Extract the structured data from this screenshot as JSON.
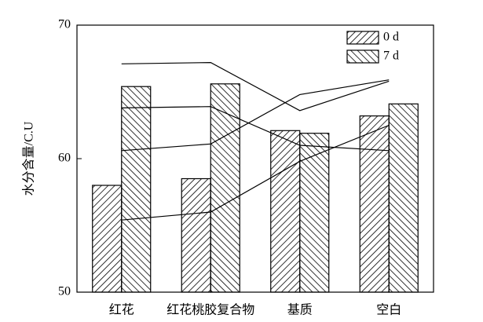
{
  "chart_data": {
    "type": "bar",
    "y_label": "水分含量/C.U",
    "categories": [
      "红花",
      "红花桃胶复合物",
      "基质",
      "空白"
    ],
    "series": [
      {
        "name": "0 d",
        "color": "#000000",
        "hatch": "forward",
        "values": [
          58.0,
          58.5,
          62.1,
          63.2
        ]
      },
      {
        "name": "7 d",
        "color": "#000000",
        "hatch": "backward",
        "values": [
          65.4,
          65.6,
          61.9,
          64.1
        ]
      }
    ],
    "lines": [
      {
        "color": "#000000",
        "values": [
          67.1,
          67.2,
          63.6,
          65.8
        ]
      },
      {
        "color": "#000000",
        "values": [
          63.8,
          63.9,
          61.0,
          60.6
        ]
      },
      {
        "color": "#000000",
        "values": [
          60.6,
          61.1,
          64.8,
          65.9
        ]
      },
      {
        "color": "#000000",
        "values": [
          55.4,
          56.0,
          59.8,
          62.5
        ]
      }
    ],
    "ylim": [
      50,
      70
    ],
    "yticks": [
      50,
      60,
      70
    ],
    "legend": "upper right"
  }
}
